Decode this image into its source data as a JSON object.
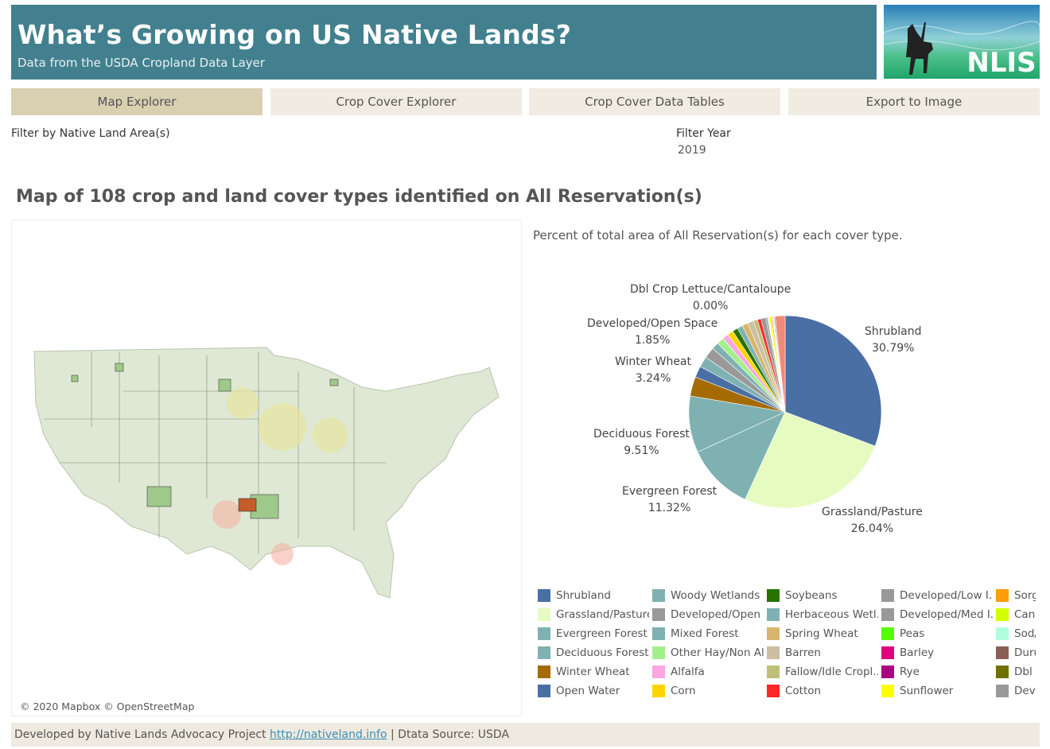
{
  "header": {
    "title": "What’s Growing on US Native Lands?",
    "subtitle": "Data from the USDA Cropland Data Layer",
    "logo_text": "NLIS"
  },
  "tabs": [
    {
      "label": "Map Explorer",
      "active": true
    },
    {
      "label": "Crop Cover Explorer"
    },
    {
      "label": "Crop Cover Data Tables"
    },
    {
      "label": "Export to Image"
    }
  ],
  "filters": {
    "area_label": "Filter by Native Land Area(s)",
    "year_label": "Filter Year",
    "year_value": "2019"
  },
  "section_title": "Map of 108 crop and land cover types identified on All Reservation(s)",
  "map": {
    "attribution": "© 2020 Mapbox © OpenStreetMap"
  },
  "pie_title": "Percent of total area of All Reservation(s) for each cover type.",
  "pie_labels": [
    {
      "name": "Dbl Crop Lettuce/Cantaloupe",
      "pct": "0.00%"
    },
    {
      "name": "Developed/Open Space",
      "pct": "1.85%"
    },
    {
      "name": "Winter Wheat",
      "pct": "3.24%"
    },
    {
      "name": "Deciduous Forest",
      "pct": "9.51%"
    },
    {
      "name": "Evergreen Forest",
      "pct": "11.32%"
    },
    {
      "name": "Grassland/Pasture",
      "pct": "26.04%"
    },
    {
      "name": "Shrubland",
      "pct": "30.79%"
    }
  ],
  "chart_data": {
    "type": "pie",
    "title": "Percent of total area of All Reservation(s) for each cover type.",
    "slices": [
      {
        "name": "Shrubland",
        "value": 30.79,
        "color": "#4a6fa5"
      },
      {
        "name": "Grassland/Pasture",
        "value": 26.04,
        "color": "#e6fbc0"
      },
      {
        "name": "Evergreen Forest",
        "value": 11.32,
        "color": "#7fb1b2"
      },
      {
        "name": "Deciduous Forest",
        "value": 9.51,
        "color": "#7fb1b2"
      },
      {
        "name": "Winter Wheat",
        "value": 3.24,
        "color": "#a56a00"
      },
      {
        "name": "Open Water",
        "value": 1.9,
        "color": "#4a6fa5"
      },
      {
        "name": "Woody Wetlands",
        "value": 1.8,
        "color": "#7fb1b2"
      },
      {
        "name": "Developed/Open Space",
        "value": 1.85,
        "color": "#999999"
      },
      {
        "name": "Mixed Forest",
        "value": 1.2,
        "color": "#7fb1b2"
      },
      {
        "name": "Other Hay/Non Alfalfa",
        "value": 1.2,
        "color": "#a3f08a"
      },
      {
        "name": "Alfalfa",
        "value": 1.0,
        "color": "#ffa5e3"
      },
      {
        "name": "Corn",
        "value": 1.0,
        "color": "#ffd300"
      },
      {
        "name": "Soybeans",
        "value": 0.9,
        "color": "#267300"
      },
      {
        "name": "Herbaceous Wetlands",
        "value": 0.9,
        "color": "#7fb1b2"
      },
      {
        "name": "Spring Wheat",
        "value": 1.0,
        "color": "#d8b56b"
      },
      {
        "name": "Barren",
        "value": 1.0,
        "color": "#ccbfa3"
      },
      {
        "name": "Fallow/Idle Cropland",
        "value": 0.7,
        "color": "#bfbf77"
      },
      {
        "name": "Cotton",
        "value": 0.6,
        "color": "#ff2626"
      },
      {
        "name": "Developed/Low Intensity",
        "value": 0.8,
        "color": "#999999"
      },
      {
        "name": "Developed/Med Intensity",
        "value": 0.3,
        "color": "#999999"
      },
      {
        "name": "Peas",
        "value": 0.1,
        "color": "#54ff00"
      },
      {
        "name": "Barley",
        "value": 0.1,
        "color": "#e2007c"
      },
      {
        "name": "Rye",
        "value": 0.1,
        "color": "#ae017e"
      },
      {
        "name": "Sunflower",
        "value": 0.3,
        "color": "#ffff00"
      },
      {
        "name": "Sorghum",
        "value": 0.2,
        "color": "#ff9e0a"
      },
      {
        "name": "Canola",
        "value": 0.1,
        "color": "#d1ff00"
      },
      {
        "name": "Sod/Grass Seed",
        "value": 0.1,
        "color": "#afffdd"
      },
      {
        "name": "Durum Wheat",
        "value": 0.1,
        "color": "#896054"
      },
      {
        "name": "Dbl Crop Lettuce/Cantaloupe",
        "value": 0.0,
        "color": "#707000"
      },
      {
        "name": "Developed/High Intensity",
        "value": 0.2,
        "color": "#999999"
      }
    ]
  },
  "legend": [
    {
      "label": "Shrubland",
      "color": "#4a6fa5"
    },
    {
      "label": "Grassland/Pasture",
      "color": "#e6fbc0"
    },
    {
      "label": "Evergreen Forest",
      "color": "#7fb1b2"
    },
    {
      "label": "Deciduous Forest",
      "color": "#7fb1b2"
    },
    {
      "label": "Winter Wheat",
      "color": "#a56a00"
    },
    {
      "label": "Open Water",
      "color": "#4a6fa5"
    },
    {
      "label": "Woody Wetlands",
      "color": "#7fb1b2"
    },
    {
      "label": "Developed/Open ..",
      "color": "#999999"
    },
    {
      "label": "Mixed Forest",
      "color": "#7fb1b2"
    },
    {
      "label": "Other Hay/Non Al..",
      "color": "#a3f08a"
    },
    {
      "label": "Alfalfa",
      "color": "#ffa5e3"
    },
    {
      "label": "Corn",
      "color": "#ffd300"
    },
    {
      "label": "Soybeans",
      "color": "#267300"
    },
    {
      "label": "Herbaceous Wetl..",
      "color": "#7fb1b2"
    },
    {
      "label": "Spring Wheat",
      "color": "#d8b56b"
    },
    {
      "label": "Barren",
      "color": "#ccbfa3"
    },
    {
      "label": "Fallow/Idle Cropl..",
      "color": "#bfbf77"
    },
    {
      "label": "Cotton",
      "color": "#ff2626"
    },
    {
      "label": "Developed/Low I..",
      "color": "#999999"
    },
    {
      "label": "Developed/Med I..",
      "color": "#999999"
    },
    {
      "label": "Peas",
      "color": "#54ff00"
    },
    {
      "label": "Barley",
      "color": "#e2007c"
    },
    {
      "label": "Rye",
      "color": "#ae017e"
    },
    {
      "label": "Sunflower",
      "color": "#ffff00"
    },
    {
      "label": "Sorghum",
      "color": "#ff9e0a"
    },
    {
      "label": "Canola",
      "color": "#d1ff00"
    },
    {
      "label": "Sod/Grass Seed",
      "color": "#afffdd"
    },
    {
      "label": "Durum Wheat",
      "color": "#896054"
    },
    {
      "label": "Dbl Crop",
      "color": "#707000"
    },
    {
      "label": "Developed/High I..",
      "color": "#999999"
    }
  ],
  "footer": {
    "prefix": "Developed by Native Lands Advocacy Project ",
    "link": "http://nativeland.info",
    "suffix": " | Dtata Source: USDA"
  }
}
